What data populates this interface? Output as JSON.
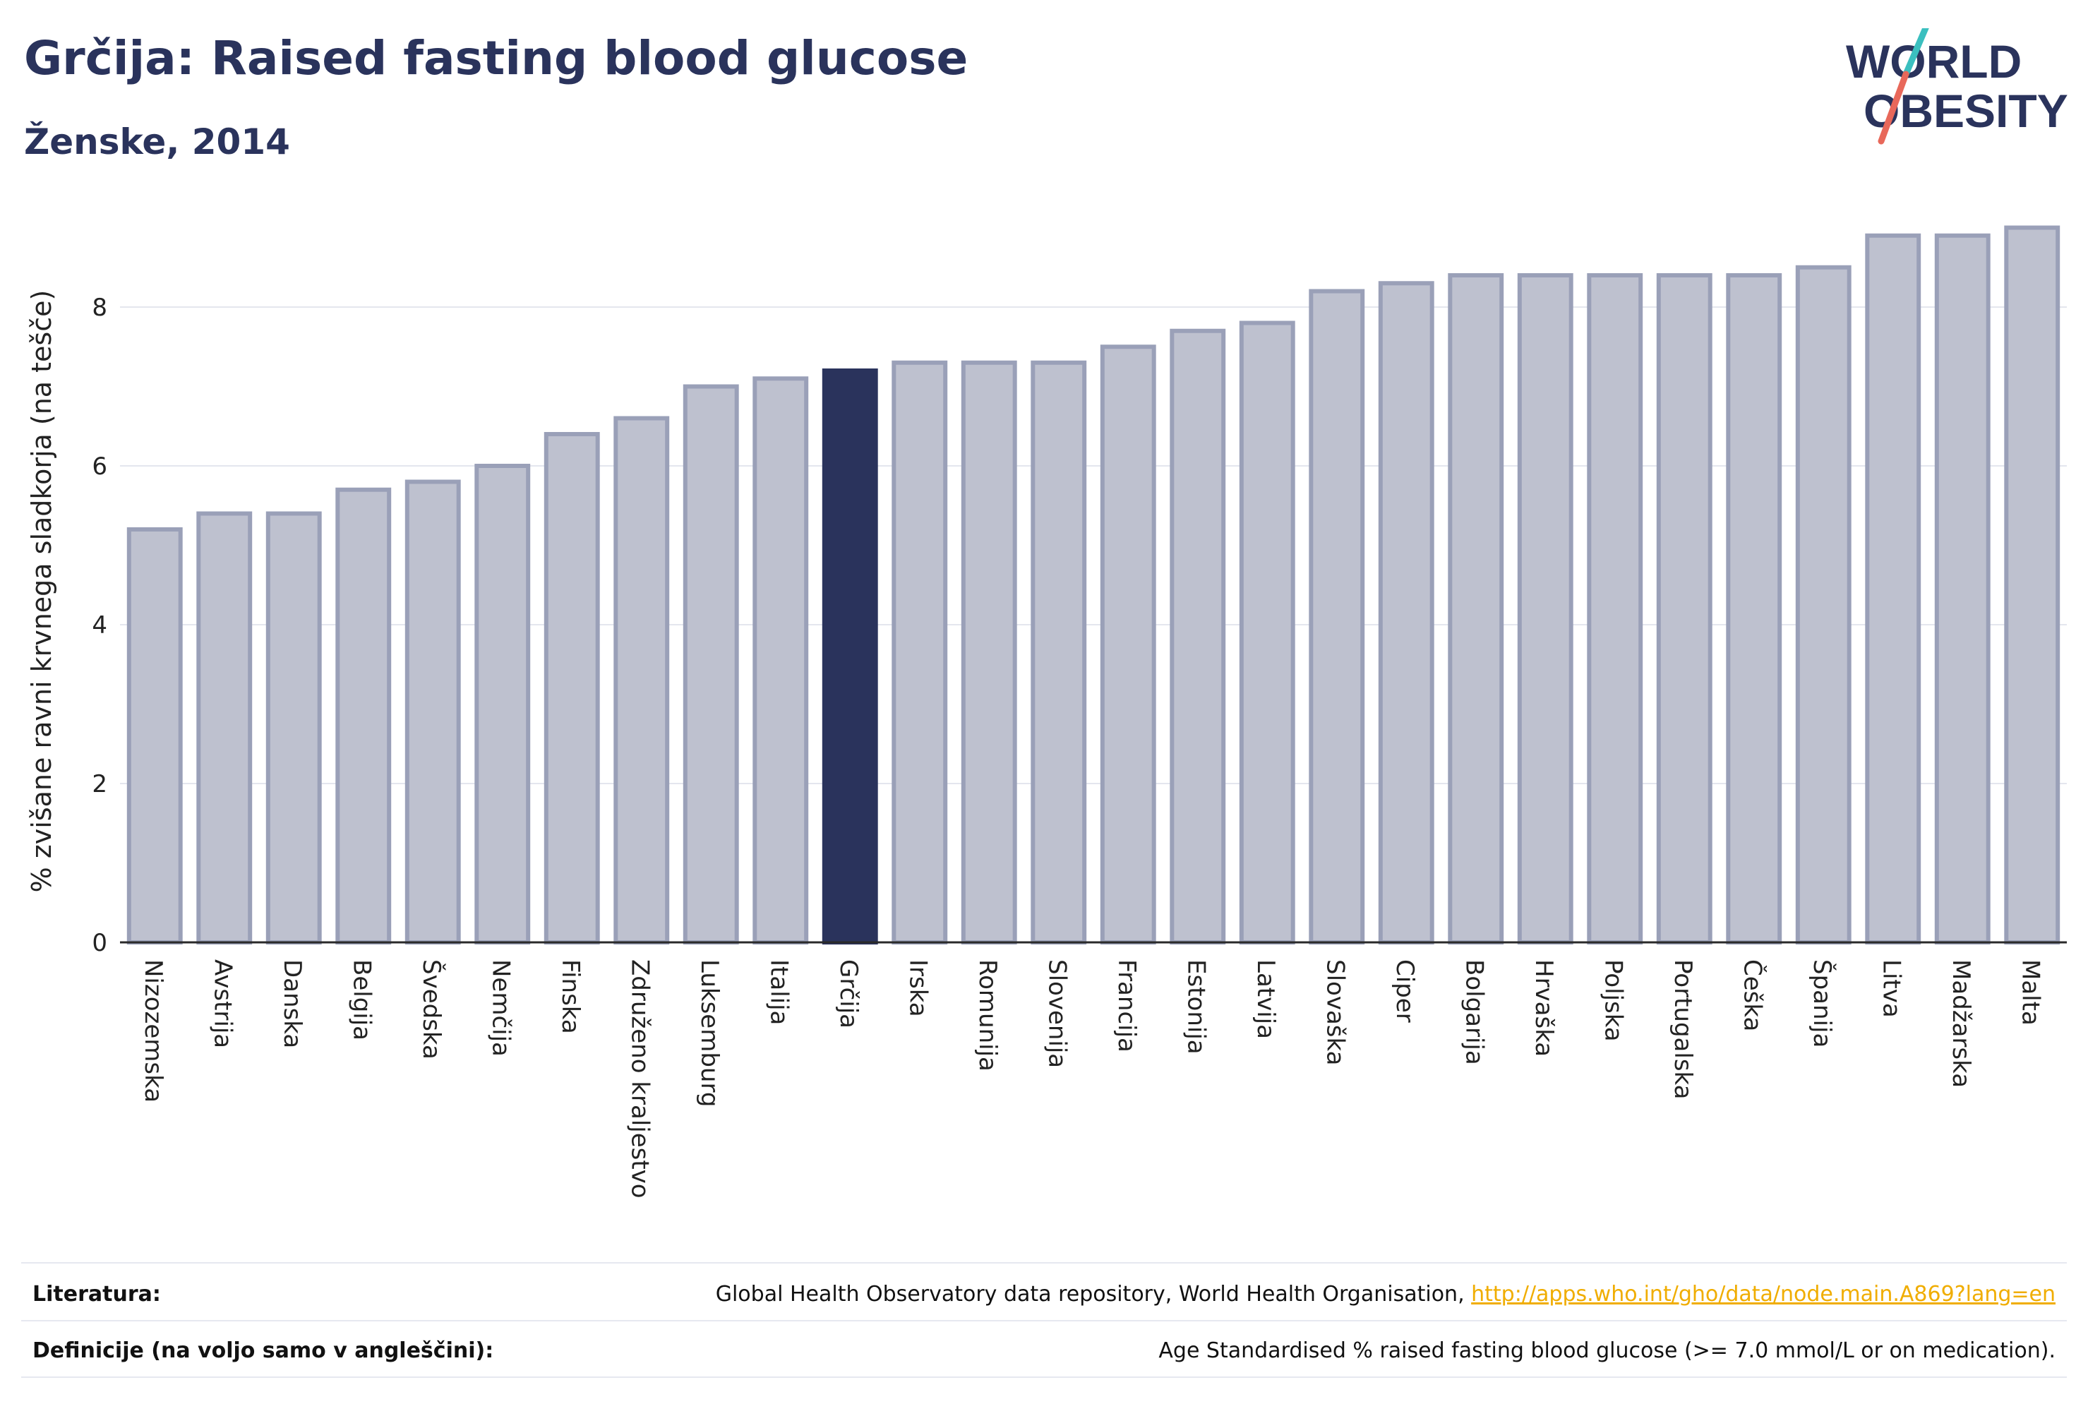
{
  "header": {
    "title": "Grčija: Raised fasting blood glucose",
    "subtitle": "Ženske, 2014"
  },
  "logo": {
    "line1": "WORLD",
    "line2": "OBESITY",
    "accent_colors": [
      "#3bbfbf",
      "#e8685a"
    ]
  },
  "colors": {
    "bar_default": "#bec1cf",
    "bar_default_border": "#9aa0b8",
    "bar_highlight": "#2a335c",
    "text": "#2a335c",
    "link": "#f0ad00"
  },
  "chart_data": {
    "type": "bar",
    "ylabel": "% zvišane ravni krvnega sladkorja (na tešče)",
    "xlabel": "",
    "ylim": [
      0,
      9.2
    ],
    "yticks": [
      0,
      2,
      4,
      6,
      8
    ],
    "grid": true,
    "highlight": "Grčija",
    "categories": [
      "Nizozemska",
      "Avstrija",
      "Danska",
      "Belgija",
      "Švedska",
      "Nemčija",
      "Finska",
      "Združeno kraljestvo",
      "Luksemburg",
      "Italija",
      "Grčija",
      "Irska",
      "Romunija",
      "Slovenija",
      "Francija",
      "Estonija",
      "Latvija",
      "Slovaška",
      "Ciper",
      "Bolgarija",
      "Hrvaška",
      "Poljska",
      "Portugalska",
      "Češka",
      "Španija",
      "Litva",
      "Madžarska",
      "Malta"
    ],
    "values": [
      5.2,
      5.4,
      5.4,
      5.7,
      5.8,
      6.0,
      6.4,
      6.6,
      7.0,
      7.1,
      7.2,
      7.3,
      7.3,
      7.3,
      7.5,
      7.7,
      7.8,
      8.2,
      8.3,
      8.4,
      8.4,
      8.4,
      8.4,
      8.4,
      8.5,
      8.9,
      8.9,
      9.0
    ]
  },
  "footer": {
    "references_label": "Literatura:",
    "references_text": "Global Health Observatory data repository, World Health Organisation, ",
    "references_link": "http://apps.who.int/gho/data/node.main.A869?lang=en",
    "definitions_label": "Definicije (na voljo samo v angleščini):",
    "definitions_text": "Age Standardised % raised fasting blood glucose (>= 7.0 mmol/L or on medication)."
  }
}
